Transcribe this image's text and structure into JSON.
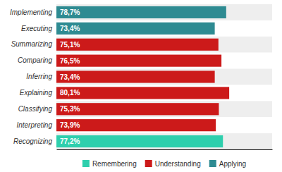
{
  "chart_data": {
    "type": "bar",
    "orientation": "horizontal",
    "categories": [
      "Implementing",
      "Executing",
      "Summarizing",
      "Comparing",
      "Inferring",
      "Explaining",
      "Classifying",
      "Interpreting",
      "Recognizing"
    ],
    "values": [
      78.7,
      73.4,
      75.1,
      76.5,
      73.4,
      80.1,
      75.3,
      73.9,
      77.2
    ],
    "value_labels": [
      "78,7%",
      "73,4%",
      "75,1%",
      "76,5%",
      "73,4%",
      "80,1%",
      "75,3%",
      "73,9%",
      "77,2%"
    ],
    "colors": [
      "#2e8b92",
      "#2e8b92",
      "#cc1a1a",
      "#cc1a1a",
      "#cc1a1a",
      "#cc1a1a",
      "#cc1a1a",
      "#cc1a1a",
      "#2ecfad"
    ],
    "data_labels": true,
    "xlim": [
      0,
      100
    ],
    "tick_labels": "y",
    "grid": false,
    "legend": "bottom",
    "legend_entries": [
      {
        "name": "Remembering",
        "color": "#2ecfad"
      },
      {
        "name": "Understanding",
        "color": "#cc1a1a"
      },
      {
        "name": "Applying",
        "color": "#2e8b92"
      }
    ]
  }
}
